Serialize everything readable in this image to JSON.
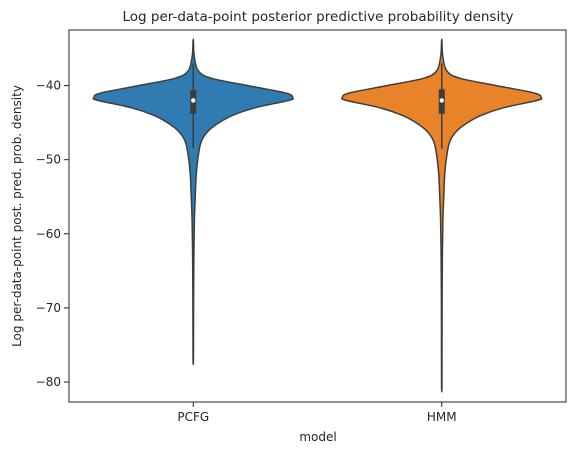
{
  "chart_data": {
    "type": "violin",
    "title": "Log per-data-point posterior predictive probability density",
    "xlabel": "model",
    "ylabel": "Log per-data-point post. pred. prob. density",
    "categories": [
      "PCFG",
      "HMM"
    ],
    "y_ticks": [
      -40,
      -50,
      -60,
      -70,
      -80
    ],
    "y_tick_labels": [
      "−40",
      "−50",
      "−60",
      "−70",
      "−80"
    ],
    "ylim": [
      -82.7,
      -32.5
    ],
    "grid": false,
    "legend": "none",
    "series": [
      {
        "category": "PCFG",
        "color": "#2f7bb2",
        "min": -77.0,
        "max": -34.0,
        "median": -42.0,
        "q1": -43.8,
        "q3": -40.6,
        "whisker_low": -48.5,
        "whisker_high": -37.0,
        "density_profile": [
          [
            -34.0,
            0.002
          ],
          [
            -36.0,
            0.01
          ],
          [
            -38.0,
            0.05
          ],
          [
            -39.0,
            0.18
          ],
          [
            -40.0,
            0.55
          ],
          [
            -41.0,
            0.93
          ],
          [
            -41.6,
            1.0
          ],
          [
            -42.0,
            0.96
          ],
          [
            -43.0,
            0.62
          ],
          [
            -44.0,
            0.4
          ],
          [
            -45.0,
            0.26
          ],
          [
            -46.0,
            0.16
          ],
          [
            -47.0,
            0.1
          ],
          [
            -48.0,
            0.07
          ],
          [
            -50.0,
            0.045
          ],
          [
            -52.0,
            0.03
          ],
          [
            -55.0,
            0.02
          ],
          [
            -58.0,
            0.012
          ],
          [
            -62.0,
            0.007
          ],
          [
            -68.0,
            0.004
          ],
          [
            -72.0,
            0.003
          ],
          [
            -77.0,
            0.002
          ]
        ]
      },
      {
        "category": "HMM",
        "color": "#e8832a",
        "min": -80.3,
        "max": -34.0,
        "median": -42.0,
        "q1": -43.8,
        "q3": -40.5,
        "whisker_low": -48.5,
        "whisker_high": -37.0,
        "density_profile": [
          [
            -34.0,
            0.002
          ],
          [
            -36.0,
            0.01
          ],
          [
            -38.0,
            0.05
          ],
          [
            -39.0,
            0.18
          ],
          [
            -40.0,
            0.55
          ],
          [
            -41.0,
            0.93
          ],
          [
            -41.6,
            1.0
          ],
          [
            -42.0,
            0.96
          ],
          [
            -43.0,
            0.62
          ],
          [
            -44.0,
            0.4
          ],
          [
            -45.0,
            0.26
          ],
          [
            -46.0,
            0.16
          ],
          [
            -47.0,
            0.1
          ],
          [
            -48.0,
            0.07
          ],
          [
            -50.0,
            0.045
          ],
          [
            -52.0,
            0.03
          ],
          [
            -55.0,
            0.02
          ],
          [
            -58.0,
            0.012
          ],
          [
            -62.0,
            0.007
          ],
          [
            -68.0,
            0.004
          ],
          [
            -72.0,
            0.003
          ],
          [
            -80.3,
            0.002
          ]
        ]
      }
    ]
  }
}
